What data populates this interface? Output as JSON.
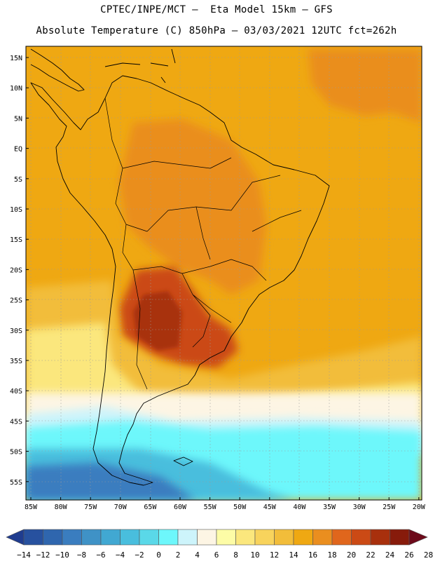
{
  "header": {
    "line1": "CPTEC/INPE/MCT –  Eta Model 15km – GFS",
    "line2": "Absolute Temperature (C) 850hPa – 03/03/2021 12UTC fct=262h"
  },
  "axes": {
    "lat_labels": [
      "15N",
      "10N",
      "5N",
      "EQ",
      "5S",
      "10S",
      "15S",
      "20S",
      "25S",
      "30S",
      "35S",
      "40S",
      "45S",
      "50S",
      "55S"
    ],
    "lon_labels": [
      "85W",
      "80W",
      "75W",
      "70W",
      "65W",
      "60W",
      "55W",
      "50W",
      "45W",
      "40W",
      "35W",
      "30W",
      "25W",
      "20W"
    ]
  },
  "colorbar": {
    "labels": [
      "-14",
      "-12",
      "-10",
      "-8",
      "-6",
      "-4",
      "-2",
      "0",
      "2",
      "4",
      "6",
      "8",
      "10",
      "12",
      "14",
      "16",
      "18",
      "20",
      "22",
      "24",
      "26",
      "28"
    ],
    "colors": [
      "#1f3c8f",
      "#27519f",
      "#2f66ae",
      "#3a7dbf",
      "#3f92c6",
      "#41a8d2",
      "#49bedd",
      "#5ad8e8",
      "#6df7fb",
      "#cdf4fb",
      "#fdf5e4",
      "#fdfca6",
      "#fbe77d",
      "#f8d35c",
      "#f2bd3a",
      "#efa812",
      "#ea8e1f",
      "#e0661c",
      "#cb4a15",
      "#a8300d",
      "#871b0b",
      "#6d0a1a"
    ]
  },
  "map_colors": {
    "ocean_tropical": "#efa812",
    "warm_orange": "#ea8e1f",
    "hot": "#cb4a15",
    "very_hot": "#a8300d",
    "mild_yellow": "#f2bd3a",
    "cool_yellow": "#fbe77d",
    "pale": "#fdf5e4",
    "light_cyan": "#cdf4fb",
    "cyan": "#6df7fb",
    "sky": "#49bedd",
    "blue": "#3a7dbf"
  }
}
